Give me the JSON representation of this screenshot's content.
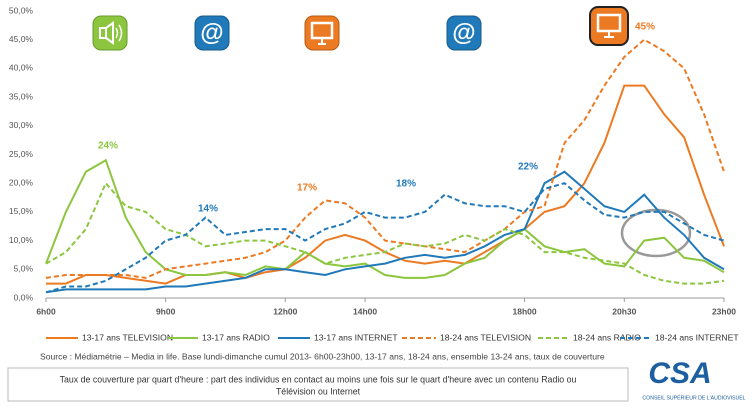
{
  "chart_data": {
    "type": "line",
    "x": [
      6,
      6.5,
      7,
      7.5,
      8,
      8.5,
      9,
      9.5,
      10,
      10.5,
      11,
      11.5,
      12,
      12.5,
      13,
      13.5,
      14,
      14.5,
      15,
      15.5,
      16,
      16.5,
      17,
      17.5,
      18,
      18.5,
      19,
      19.5,
      20,
      20.5,
      21,
      21.5,
      22,
      22.5,
      23
    ],
    "xlim": [
      6,
      23
    ],
    "xticks": [
      {
        "value": 6,
        "label": "6h00"
      },
      {
        "value": 9,
        "label": "9h00"
      },
      {
        "value": 12,
        "label": "12h00"
      },
      {
        "value": 14,
        "label": "14h00"
      },
      {
        "value": 18,
        "label": "18h00"
      },
      {
        "value": 20.5,
        "label": "20h30"
      },
      {
        "value": 23,
        "label": "23h00"
      }
    ],
    "ylim": [
      0,
      50
    ],
    "yticks": [
      {
        "value": 0,
        "label": "0,0%"
      },
      {
        "value": 5,
        "label": "5,0%"
      },
      {
        "value": 10,
        "label": "10,0%"
      },
      {
        "value": 15,
        "label": "15,0%"
      },
      {
        "value": 20,
        "label": "20,0%"
      },
      {
        "value": 25,
        "label": "25,0%"
      },
      {
        "value": 30,
        "label": "30,0%"
      },
      {
        "value": 35,
        "label": "35,0%"
      },
      {
        "value": 40,
        "label": "40,0%"
      },
      {
        "value": 45,
        "label": "45,0%"
      },
      {
        "value": 50,
        "label": "50,0%"
      }
    ],
    "series": [
      {
        "name": "13-17 ans TELEVISION",
        "color": "#ec7a23",
        "style": "solid",
        "values": [
          2.5,
          2.5,
          4,
          4,
          3.5,
          3,
          2.5,
          4,
          4,
          4.5,
          3.5,
          4.5,
          5,
          7,
          10,
          11,
          10,
          8,
          6.5,
          6,
          6.5,
          6,
          8,
          10,
          12,
          15,
          16,
          20,
          27,
          37,
          37,
          32,
          28,
          18,
          9
        ]
      },
      {
        "name": "13-17 ans RADIO",
        "color": "#8cc63e",
        "style": "solid",
        "values": [
          6,
          15,
          22,
          24,
          14,
          8,
          5,
          4,
          4,
          4.5,
          4,
          5.5,
          5,
          8,
          6,
          5.5,
          6,
          4,
          3.5,
          3.5,
          4,
          6,
          7,
          10,
          12,
          9,
          8,
          8.5,
          6,
          5.5,
          10,
          10.5,
          7,
          6.5,
          4.5
        ]
      },
      {
        "name": "13-17 ans  INTERNET",
        "color": "#2079b8",
        "style": "solid",
        "values": [
          1,
          1.5,
          1.5,
          1.5,
          1.5,
          1.5,
          2,
          2,
          2.5,
          3,
          3.5,
          5,
          5,
          4.5,
          4,
          5,
          5.5,
          6,
          7,
          7.5,
          7,
          7.5,
          9,
          11,
          12,
          20,
          22,
          19,
          16,
          15,
          18,
          14,
          11,
          7,
          5
        ]
      },
      {
        "name": "18-24 ans  TELEVISION",
        "color": "#ec7a23",
        "style": "dashed",
        "values": [
          3.5,
          4,
          4,
          4,
          4,
          3.5,
          5,
          5.5,
          6,
          6.5,
          7,
          8,
          10,
          14,
          17,
          16.5,
          14,
          10,
          9.5,
          9,
          8.5,
          8,
          10,
          12,
          15,
          16,
          27,
          31,
          37,
          42,
          45,
          43,
          40,
          32,
          22
        ]
      },
      {
        "name": "18-24 ans RADIO",
        "color": "#8cc63e",
        "style": "dashed",
        "values": [
          6,
          8,
          12,
          20,
          16,
          15,
          12,
          11,
          9,
          9.5,
          10,
          10,
          9,
          8,
          6,
          7,
          7.5,
          8,
          9.5,
          9,
          9.5,
          11,
          10,
          12,
          11,
          8,
          8,
          7,
          6.5,
          6,
          4,
          3,
          2.5,
          2.5,
          3
        ]
      },
      {
        "name": "18-24 ans  INTERNET",
        "color": "#2079b8",
        "style": "dashed",
        "values": [
          1,
          2,
          2,
          3,
          5,
          7,
          10,
          11,
          14,
          11,
          11.5,
          12,
          12,
          10,
          12,
          13,
          15,
          14,
          14,
          15,
          18,
          16.5,
          16,
          16,
          15,
          19,
          20,
          17,
          14.5,
          14,
          15,
          15,
          13,
          11,
          10
        ]
      }
    ],
    "annotations": [
      {
        "text": "24%",
        "color": "#8cc63e"
      },
      {
        "text": "14%",
        "color": "#2079b8"
      },
      {
        "text": "17%",
        "color": "#ec7a23"
      },
      {
        "text": "18%",
        "color": "#2079b8"
      },
      {
        "text": "22%",
        "color": "#2079b8"
      },
      {
        "text": "45%",
        "color": "#ec7a23"
      }
    ],
    "source": "Source : Médiamétrie – Media in life. Base lundi-dimanche cumul 2013- 6h00-23h00, 13-17 ans, 18-24 ans, ensemble 13-24 ans, taux de couverture",
    "caption": [
      "Taux de couverture par quart d'heure : part des individus  en contact au moins une fois sur le quart d'heure avec un contenu Radio ou",
      "Télévision ou Internet"
    ],
    "logo": {
      "name": "CSA",
      "subtitle": "CONSEIL SUPÉRIEUR DE L'AUDIOVISUEL"
    }
  }
}
